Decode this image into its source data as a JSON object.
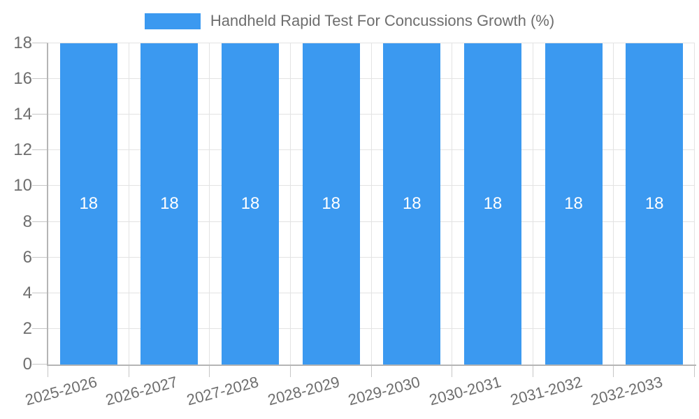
{
  "chart_data": {
    "type": "bar",
    "title": "Handheld Rapid Test For Concussions Growth (%)",
    "categories": [
      "2025-2026",
      "2026-2027",
      "2027-2028",
      "2028-2029",
      "2029-2030",
      "2030-2031",
      "2031-2032",
      "2032-2033"
    ],
    "series": [
      {
        "name": "Handheld Rapid Test For Concussions Growth (%)",
        "values": [
          18,
          18,
          18,
          18,
          18,
          18,
          18,
          18
        ]
      }
    ],
    "bar_value_labels": [
      "18",
      "18",
      "18",
      "18",
      "18",
      "18",
      "18",
      "18"
    ],
    "xlabel": "",
    "ylabel": "",
    "ylim": [
      0,
      18
    ],
    "yticks": [
      0,
      2,
      4,
      6,
      8,
      10,
      12,
      14,
      16,
      18
    ],
    "grid": true,
    "legend_position": "top",
    "colors": {
      "bar": "#3b99f0",
      "bar_value_text": "#ffffff",
      "text": "#6e6e6e",
      "grid": "#e3e3e3",
      "axis": "#b5b5b5",
      "tick": "#c6c6c6",
      "background": "#ffffff"
    }
  }
}
